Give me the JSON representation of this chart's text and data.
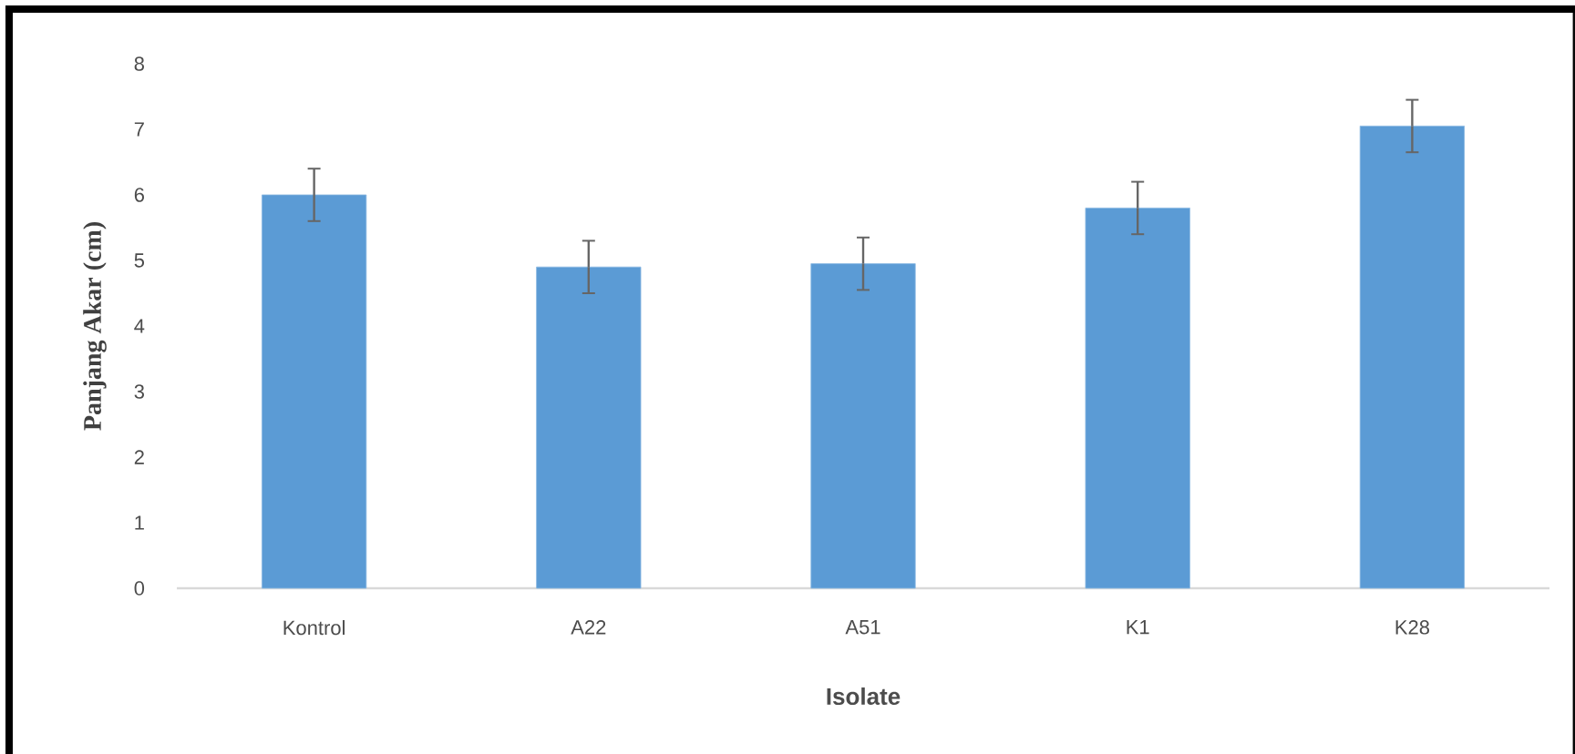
{
  "chart_data": {
    "type": "bar",
    "xlabel": "Isolate",
    "ylabel": "Panjang Akar (cm)",
    "categories": [
      "Kontrol",
      "A22",
      "A51",
      "K1",
      "K28"
    ],
    "values": [
      6.0,
      4.9,
      4.95,
      5.8,
      7.05
    ],
    "errors": [
      0.4,
      0.4,
      0.4,
      0.4,
      0.4
    ],
    "color": "#5b9bd5",
    "ylim": [
      0,
      8
    ],
    "yticks": [
      0,
      1,
      2,
      3,
      4,
      5,
      6,
      7,
      8
    ],
    "grid": false
  }
}
